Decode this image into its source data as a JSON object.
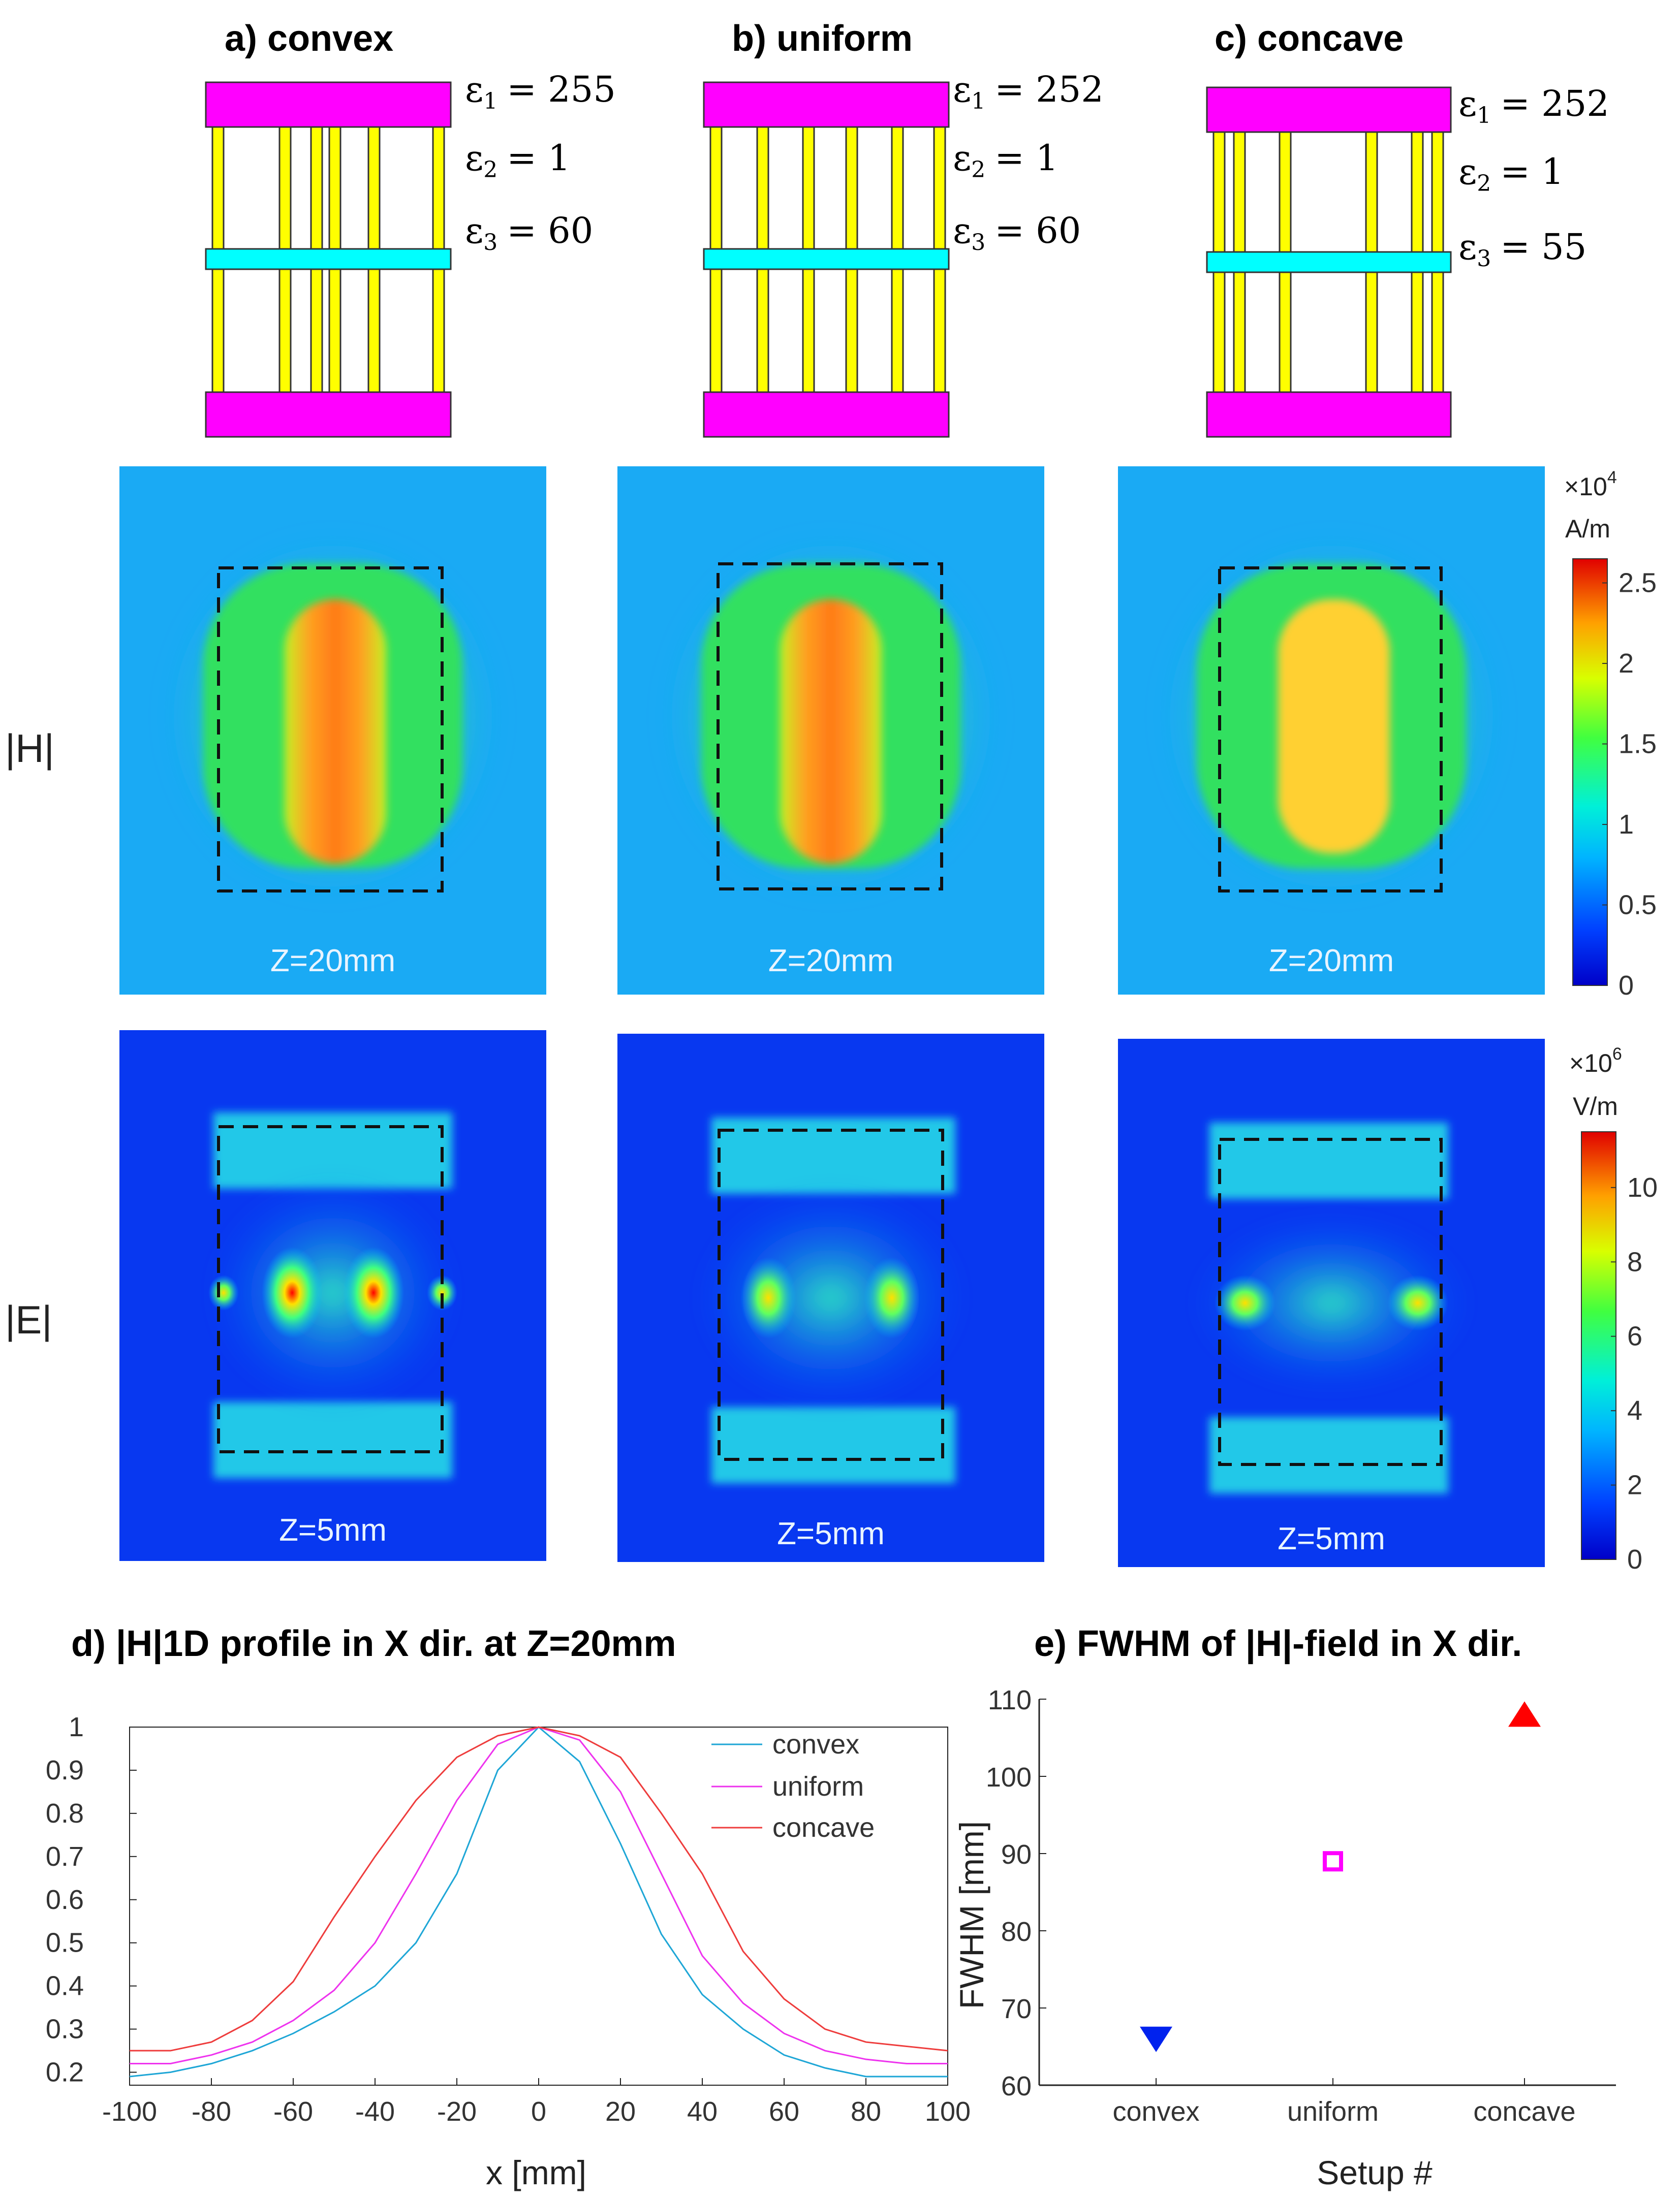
{
  "panels": [
    {
      "title": "a) convex",
      "eps1": "= 255",
      "eps2": "= 1",
      "eps3": "= 60",
      "z_h": "Z=20mm",
      "z_e": "Z=5mm"
    },
    {
      "title": "b) uniform",
      "eps1": "= 252",
      "eps2": "= 1",
      "eps3": "= 60",
      "z_h": "Z=20mm",
      "z_e": "Z=5mm"
    },
    {
      "title": "c) concave",
      "eps1": "= 252",
      "eps2": "= 1",
      "eps3": "= 55",
      "z_h": "Z=20mm",
      "z_e": "Z=5mm"
    }
  ],
  "eps_symbol": "ε",
  "rows": {
    "h": "|H|",
    "e": "|E|"
  },
  "colorbars": {
    "h": {
      "exp_base": "×10",
      "exp": "4",
      "unit": "A/m",
      "ticks": [
        "2.5",
        "2",
        "1.5",
        "1",
        "0.5",
        "0"
      ],
      "tick_values": [
        2.5,
        2,
        1.5,
        1,
        0.5,
        0
      ],
      "max": 2.65
    },
    "e": {
      "exp_base": "×10",
      "exp": "6",
      "unit": "V/m",
      "ticks": [
        "10",
        "8",
        "6",
        "4",
        "2",
        "0"
      ],
      "tick_values": [
        10,
        8,
        6,
        4,
        2,
        0
      ],
      "max": 11.5
    }
  },
  "colors": {
    "magenta": "#ff00ff",
    "cyan": "#00ffff",
    "yellow": "#ffff00",
    "convex": "#1ea6d6",
    "uniform": "#ee33ee",
    "concave": "#ee3c3c"
  },
  "chart_data": [
    {
      "type": "line",
      "title": "d) |H|1D profile in X dir. at Z=20mm",
      "xlabel": "x [mm]",
      "ylabel": "",
      "xlim": [
        -100,
        100
      ],
      "ylim": [
        0.17,
        1.0
      ],
      "xticks": [
        -100,
        -80,
        -60,
        -40,
        -20,
        0,
        20,
        40,
        60,
        80,
        100
      ],
      "yticks": [
        0.2,
        0.3,
        0.4,
        0.5,
        0.6,
        0.7,
        0.8,
        0.9,
        1
      ],
      "x": [
        -100,
        -90,
        -80,
        -70,
        -60,
        -50,
        -40,
        -30,
        -20,
        -10,
        0,
        10,
        20,
        30,
        40,
        50,
        60,
        70,
        80,
        90,
        100
      ],
      "series": [
        {
          "name": "convex",
          "values": [
            0.19,
            0.2,
            0.22,
            0.25,
            0.29,
            0.34,
            0.4,
            0.5,
            0.66,
            0.9,
            1.0,
            0.92,
            0.73,
            0.52,
            0.38,
            0.3,
            0.24,
            0.21,
            0.19,
            0.19,
            0.19
          ]
        },
        {
          "name": "uniform",
          "values": [
            0.22,
            0.22,
            0.24,
            0.27,
            0.32,
            0.39,
            0.5,
            0.66,
            0.83,
            0.96,
            1.0,
            0.97,
            0.85,
            0.66,
            0.47,
            0.36,
            0.29,
            0.25,
            0.23,
            0.22,
            0.22
          ]
        },
        {
          "name": "concave",
          "values": [
            0.25,
            0.25,
            0.27,
            0.32,
            0.41,
            0.56,
            0.7,
            0.83,
            0.93,
            0.98,
            1.0,
            0.98,
            0.93,
            0.8,
            0.66,
            0.48,
            0.37,
            0.3,
            0.27,
            0.26,
            0.25
          ]
        }
      ]
    },
    {
      "type": "scatter",
      "title": "e) FWHM of |H|-field in X dir.",
      "xlabel": "Setup #",
      "ylabel": "FWHM  [mm]",
      "ylim": [
        60,
        110
      ],
      "yticks": [
        60,
        70,
        80,
        90,
        100,
        110
      ],
      "categories": [
        "convex",
        "uniform",
        "concave"
      ],
      "values": [
        66,
        89,
        108
      ],
      "markers": [
        "triangle-down",
        "square",
        "triangle-up"
      ],
      "marker_colors": [
        "#0022ee",
        "#ff00ff",
        "#ff0000"
      ]
    }
  ]
}
